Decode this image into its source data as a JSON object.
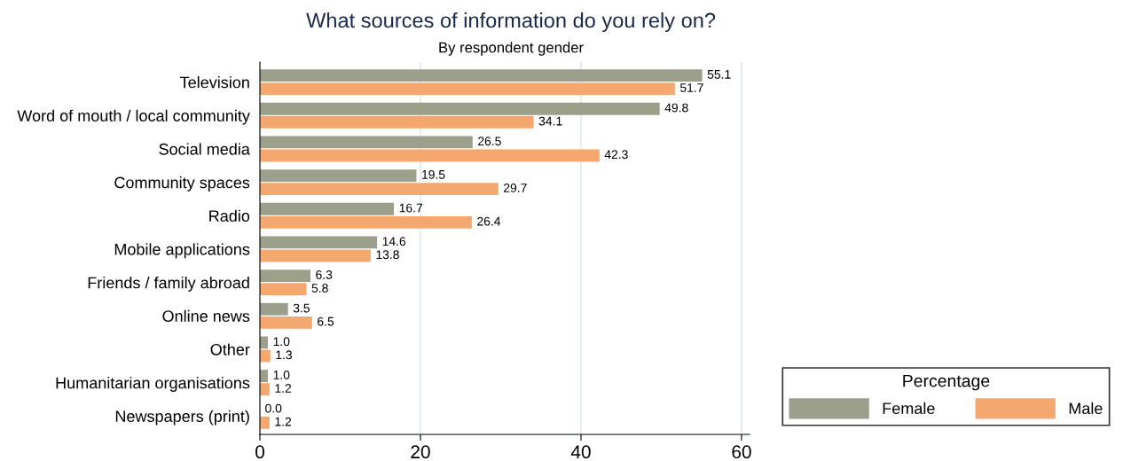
{
  "chart_data": {
    "type": "bar",
    "orientation": "horizontal",
    "title": "What sources of information do you rely on?",
    "subtitle": "By respondent gender",
    "categories": [
      "Television",
      "Word of mouth / local community",
      "Social media",
      "Community spaces",
      "Radio",
      "Mobile applications",
      "Friends / family abroad",
      "Online news",
      "Other",
      "Humanitarian organisations",
      "Newspapers (print)"
    ],
    "series": [
      {
        "name": "Female",
        "color": "#9ca08a",
        "values": [
          55.1,
          49.8,
          26.5,
          19.5,
          16.7,
          14.6,
          6.3,
          3.5,
          1.0,
          1.0,
          0.0
        ],
        "value_labels": [
          "55.1",
          "49.8",
          "26.5",
          "19.5",
          "16.7",
          "14.6",
          "6.3",
          "3.5",
          "1.0",
          "1.0",
          "0.0"
        ]
      },
      {
        "name": "Male",
        "color": "#f4a76e",
        "values": [
          51.7,
          34.1,
          42.3,
          29.7,
          26.4,
          13.8,
          5.8,
          6.5,
          1.3,
          1.2,
          1.2
        ],
        "value_labels": [
          "51.7",
          "34.1",
          "42.3",
          "29.7",
          "26.4",
          "13.8",
          "5.8",
          "6.5",
          "1.3",
          "1.2",
          "1.2"
        ]
      }
    ],
    "xlim": [
      0,
      61
    ],
    "xticks": [
      0,
      20,
      40,
      60
    ],
    "grid": "x",
    "legend": "bottom right",
    "legend_title": "Percentage"
  }
}
